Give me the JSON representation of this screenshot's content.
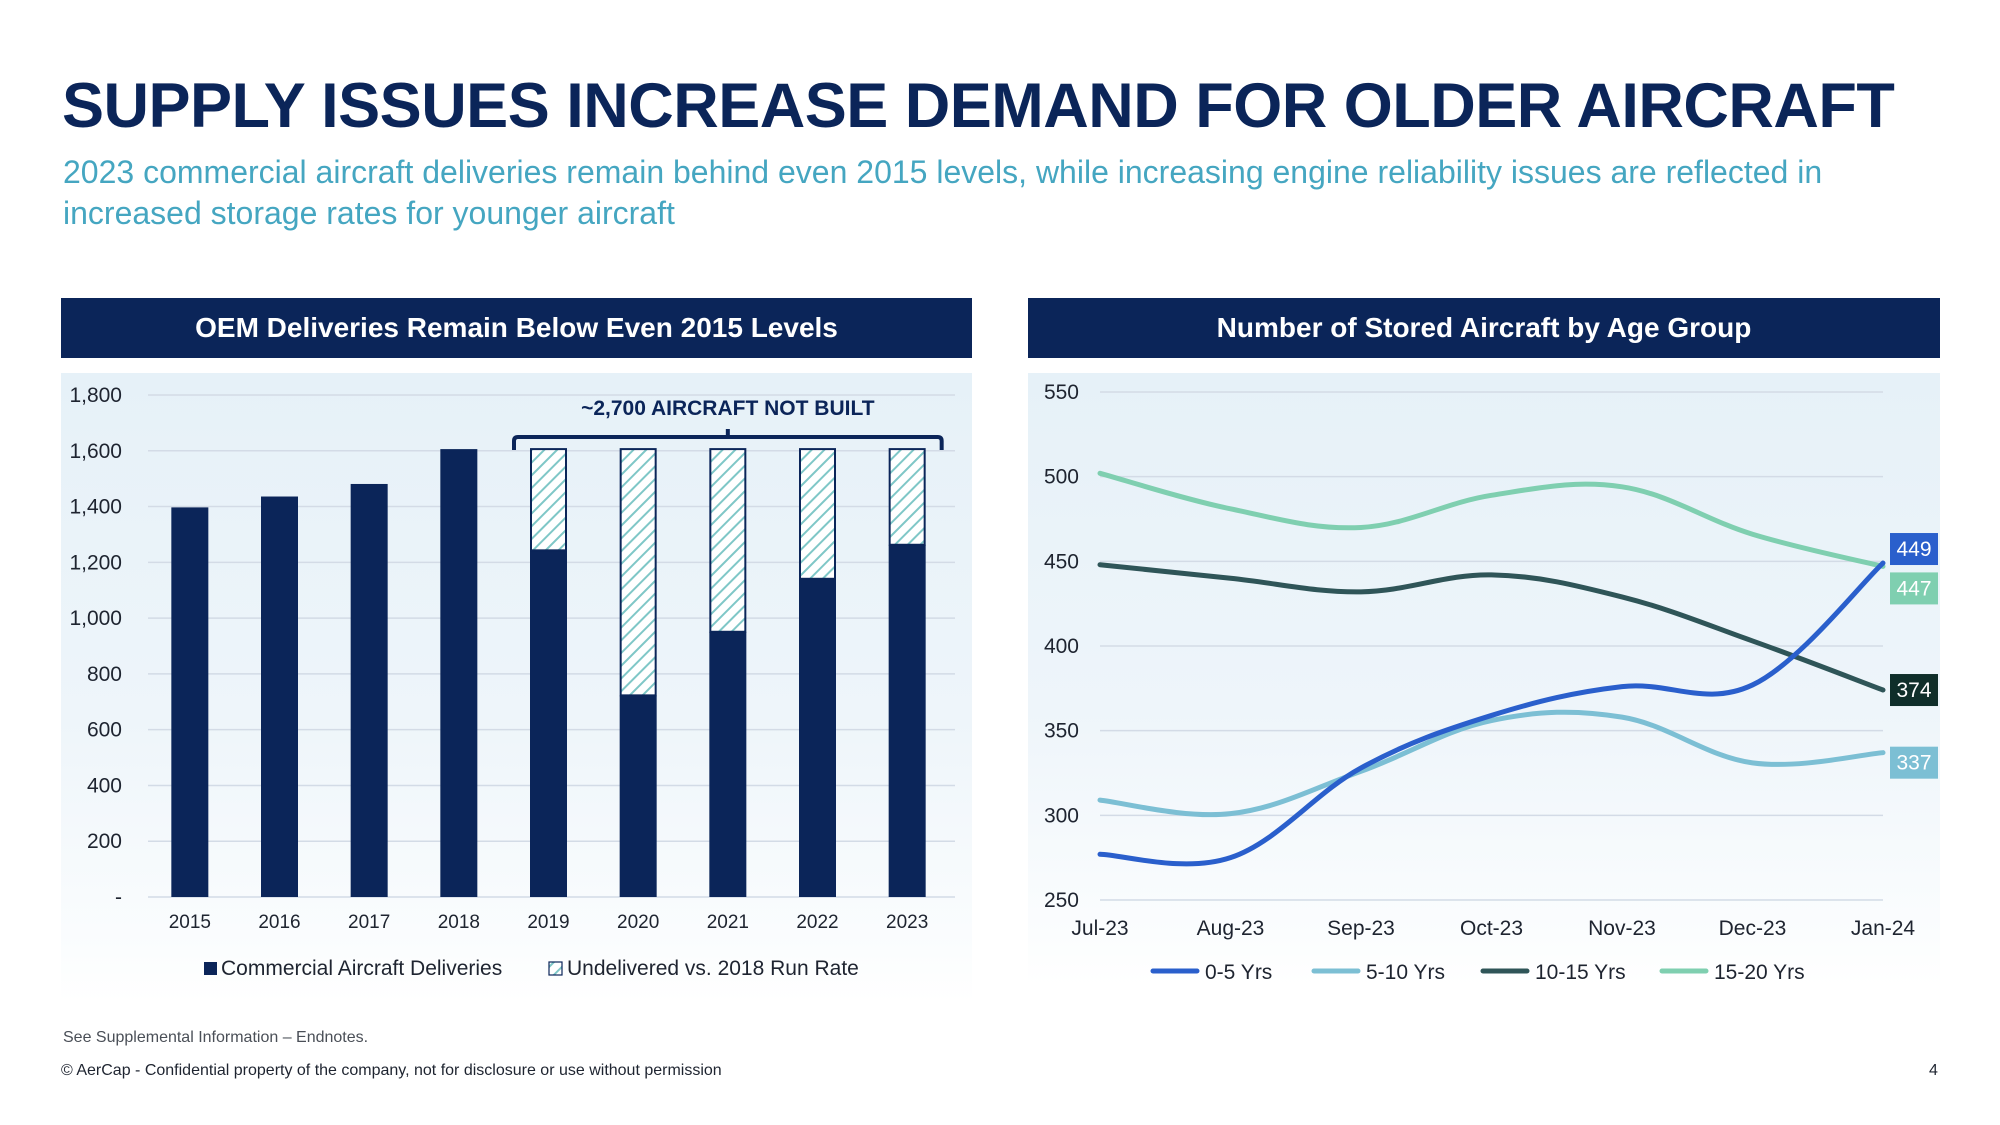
{
  "slide": {
    "title": "SUPPLY ISSUES INCREASE DEMAND FOR OLDER AIRCRAFT",
    "subtitle": "2023 commercial aircraft deliveries remain behind even 2015 levels, while increasing engine reliability issues are reflected in increased storage rates for younger aircraft",
    "footnote": "See Supplemental Information – Endnotes.",
    "copyright": "© AerCap - Confidential property of the company, not for disclosure or use without permission",
    "page_number": "4"
  },
  "colors": {
    "navy": "#0b2559",
    "subtitle_teal": "#45a6c1",
    "hatch": "#7fc7c7",
    "series_0_5": "#2a5fcc",
    "series_5_10": "#7cbfd4",
    "series_10_15": "#2f5558",
    "series_15_20": "#7fcfb0",
    "label_10_15": "#0f2e2a"
  },
  "chart_data": [
    {
      "type": "bar",
      "stacked": true,
      "title": "OEM Deliveries Remain Below Even 2015 Levels",
      "annotation": "~2,700 AIRCRAFT NOT BUILT",
      "annotation_span": [
        "2019",
        "2023"
      ],
      "categories": [
        "2015",
        "2016",
        "2017",
        "2018",
        "2019",
        "2020",
        "2021",
        "2022",
        "2023"
      ],
      "series": [
        {
          "name": "Commercial Aircraft Deliveries",
          "values": [
            1397,
            1436,
            1481,
            1606,
            1243,
            723,
            951,
            1141,
            1263
          ]
        },
        {
          "name": "Undelivered vs. 2018 Run Rate",
          "values": [
            0,
            0,
            0,
            0,
            363,
            883,
            655,
            465,
            343
          ],
          "pattern": "hatched"
        }
      ],
      "ylim": [
        0,
        1800
      ],
      "yticks": [
        0,
        200,
        400,
        600,
        800,
        1000,
        1200,
        1400,
        1600,
        1800
      ],
      "ytick_labels": [
        "-",
        "200",
        "400",
        "600",
        "800",
        "1,000",
        "1,200",
        "1,400",
        "1,600",
        "1,800"
      ],
      "xlabel": "",
      "ylabel": "",
      "grid": true,
      "legend": "bottom"
    },
    {
      "type": "line",
      "smooth": true,
      "title": "Number of Stored Aircraft by Age Group",
      "x": [
        "Jul-23",
        "Aug-23",
        "Sep-23",
        "Oct-23",
        "Nov-23",
        "Dec-23",
        "Jan-24"
      ],
      "series": [
        {
          "name": "0-5 Yrs",
          "values": [
            277,
            275,
            328,
            359,
            376,
            377,
            449
          ],
          "end_label": "449"
        },
        {
          "name": "5-10 Yrs",
          "values": [
            309,
            301,
            326,
            356,
            358,
            331,
            337
          ],
          "end_label": "337"
        },
        {
          "name": "10-15 Yrs",
          "values": [
            448,
            440,
            432,
            442,
            429,
            403,
            374
          ],
          "end_label": "374"
        },
        {
          "name": "15-20 Yrs",
          "values": [
            502,
            481,
            470,
            489,
            494,
            466,
            447
          ],
          "end_label": "447"
        }
      ],
      "ylim": [
        250,
        550
      ],
      "yticks": [
        250,
        300,
        350,
        400,
        450,
        500,
        550
      ],
      "xlabel": "",
      "ylabel": "",
      "grid": true,
      "legend": "bottom"
    }
  ]
}
